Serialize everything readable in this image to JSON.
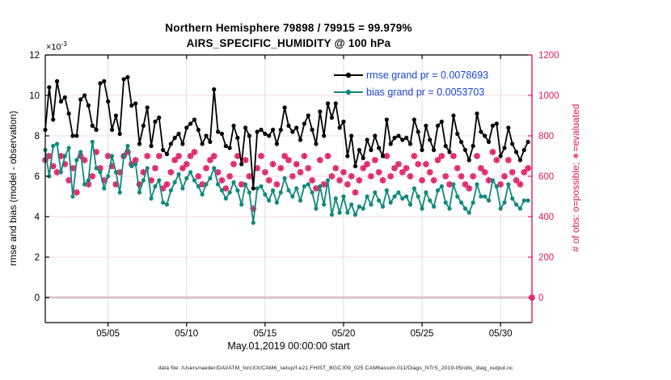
{
  "caption": "data file: /Users/raeder/DAI/ATM_forcXX/CAM6_setup/f.e21.FHIST_BGC.f09_025.CAM6assim.011/Diags_NTrS_2019-05/obs_diag_output.nc",
  "chart_data": {
    "type": "line",
    "title": "Northern Hemisphere 79898 / 79915 = 99.979%",
    "subtitle": "AIRS_SPECIFIC_HUMIDITY @ 100 hPa",
    "xlabel": "May.01,2019 00:00:00 start",
    "ylabel_left": "rmse and bias (model - observation)",
    "ylabel_right": "# of obs: o=possible; ∗=evaluated",
    "y_multiplier": {
      "base": "×10",
      "exp": "-3"
    },
    "x_unit": "days since 2019-05-01 00:00",
    "x_start": 0,
    "x_step": 0.25,
    "xlim_days": [
      0,
      31
    ],
    "ylim_left_e3": [
      -1.24,
      12
    ],
    "ylim_right": [
      -124,
      1200
    ],
    "grid": true,
    "legend_position": "upper right inside",
    "xticks": {
      "days": [
        4,
        9,
        14,
        19,
        24,
        29
      ],
      "labels": [
        "05/05",
        "05/10",
        "05/15",
        "05/20",
        "05/25",
        "05/30"
      ]
    },
    "yticks_left_e3": [
      0,
      2,
      4,
      6,
      8,
      10,
      12
    ],
    "yticks_right": [
      0,
      200,
      400,
      600,
      800,
      1000,
      1200
    ],
    "colors": {
      "rmse": "#000000",
      "bias": "#0f8a7d",
      "obs": "#df1860",
      "legend_text": "#1845e0",
      "grid_horizontal": "#f6d8e1",
      "grid_vertical": "#dddddd",
      "zero_line": "#d8c3ca",
      "axis": "#000000",
      "axis_right": "#df1860"
    },
    "series": [
      {
        "name": "rmse",
        "legend_label": "rmse grand pr = 0.0078693",
        "grand_pr": 0.0078693,
        "marker": "filled-circle",
        "axis": "left",
        "units_e3": true,
        "values": [
          8.3,
          10.4,
          8.8,
          10.7,
          9.7,
          9.9,
          9.1,
          8.0,
          8.0,
          9.8,
          10.0,
          9.5,
          8.5,
          8.3,
          10.6,
          10.7,
          9.7,
          8.3,
          9.0,
          8.1,
          10.8,
          10.9,
          9.5,
          9.6,
          7.6,
          8.5,
          9.4,
          7.5,
          8.7,
          8.9,
          7.3,
          7.1,
          7.6,
          7.9,
          8.1,
          7.6,
          8.4,
          8.6,
          8.8,
          8.3,
          7.6,
          8.0,
          7.7,
          10.3,
          8.2,
          8.1,
          7.5,
          7.4,
          8.5,
          7.9,
          6.6,
          8.4,
          8.0,
          5.4,
          8.2,
          8.3,
          8.1,
          8.0,
          8.3,
          7.6,
          8.3,
          9.4,
          8.5,
          8.2,
          8.4,
          7.8,
          8.6,
          9.0,
          8.3,
          7.6,
          9.2,
          8.0,
          9.6,
          8.9,
          9.6,
          8.4,
          8.7,
          7.0,
          8.0,
          6.5,
          7.3,
          6.9,
          7.8,
          7.3,
          8.0,
          7.4,
          7.0,
          8.8,
          7.6,
          7.9,
          8.0,
          7.8,
          7.9,
          7.6,
          8.8,
          8.2,
          7.3,
          8.5,
          7.8,
          7.3,
          8.5,
          8.7,
          7.5,
          7.2,
          9.0,
          8.1,
          7.7,
          7.3,
          6.8,
          7.5,
          9.1,
          8.2,
          8.0,
          7.7,
          8.5,
          8.6,
          7.0,
          7.4,
          8.4,
          7.6,
          7.2,
          6.8,
          7.3,
          7.7
        ]
      },
      {
        "name": "bias",
        "legend_label": "bias grand pr = 0.0053703",
        "grand_pr": 0.0053703,
        "marker": "filled-circle",
        "axis": "left",
        "units_e3": true,
        "values": [
          7.3,
          6.0,
          7.5,
          7.6,
          6.2,
          7.0,
          7.4,
          5.0,
          6.8,
          7.2,
          5.6,
          5.8,
          7.7,
          6.4,
          6.2,
          5.4,
          6.0,
          7.0,
          6.2,
          5.2,
          7.0,
          7.5,
          6.5,
          6.6,
          5.2,
          5.8,
          6.4,
          4.9,
          5.5,
          5.8,
          4.7,
          4.6,
          5.3,
          5.7,
          6.1,
          5.4,
          5.9,
          6.2,
          5.8,
          5.5,
          5.1,
          5.6,
          5.9,
          6.4,
          5.6,
          5.3,
          4.9,
          5.2,
          5.7,
          5.3,
          4.6,
          5.6,
          5.2,
          3.7,
          5.4,
          5.5,
          5.1,
          4.8,
          5.3,
          4.7,
          5.2,
          5.9,
          5.3,
          5.0,
          5.4,
          4.8,
          5.5,
          5.6,
          5.2,
          4.4,
          5.5,
          4.6,
          5.8,
          4.1,
          4.9,
          4.2,
          5.0,
          4.2,
          4.6,
          4.1,
          4.5,
          4.4,
          5.0,
          4.6,
          5.2,
          4.8,
          4.5,
          5.3,
          4.7,
          5.0,
          5.2,
          4.9,
          5.0,
          4.6,
          5.4,
          5.0,
          4.4,
          5.2,
          4.8,
          4.5,
          5.3,
          5.5,
          4.7,
          4.4,
          5.6,
          5.0,
          4.7,
          4.4,
          4.2,
          4.7,
          5.6,
          5.0,
          5.0,
          4.8,
          5.8,
          5.5,
          4.4,
          4.7,
          5.6,
          4.9,
          4.6,
          4.4,
          4.8,
          4.8
        ]
      },
      {
        "name": "obs_count",
        "legend_label": null,
        "marker": "circle-asterisk",
        "axis": "right",
        "units_e3": false,
        "values": [
          680,
          700,
          650,
          620,
          700,
          660,
          580,
          640,
          520,
          700,
          680,
          560,
          600,
          720,
          640,
          580,
          700,
          650,
          560,
          620,
          700,
          720,
          660,
          680,
          560,
          620,
          700,
          580,
          640,
          700,
          540,
          560,
          620,
          680,
          700,
          640,
          660,
          700,
          720,
          600,
          560,
          640,
          680,
          700,
          620,
          580,
          540,
          600,
          660,
          700,
          560,
          680,
          600,
          440,
          640,
          700,
          620,
          580,
          660,
          560,
          640,
          700,
          680,
          600,
          660,
          620,
          700,
          640,
          580,
          540,
          680,
          560,
          700,
          600,
          640,
          580,
          620,
          560,
          600,
          520,
          580,
          640,
          660,
          600,
          680,
          620,
          580,
          700,
          600,
          640,
          660,
          620,
          640,
          600,
          700,
          660,
          580,
          660,
          620,
          580,
          680,
          700,
          600,
          560,
          700,
          640,
          600,
          560,
          540,
          600,
          700,
          640,
          620,
          580,
          720,
          680,
          560,
          600,
          680,
          620,
          580,
          560,
          620,
          640,
          0
        ]
      }
    ]
  }
}
